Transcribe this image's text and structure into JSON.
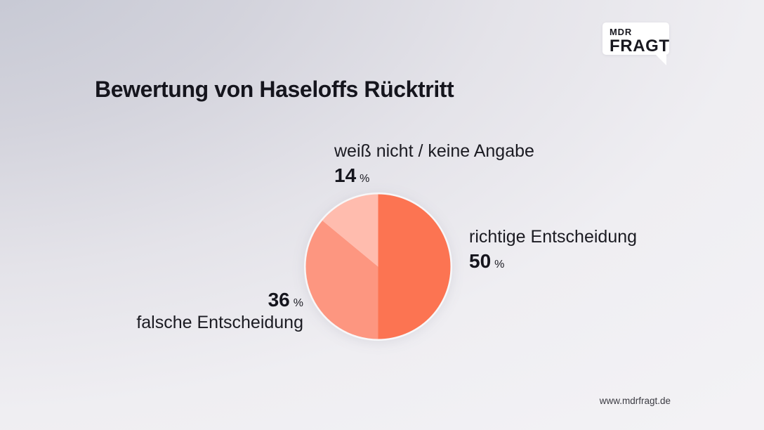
{
  "brand": {
    "logo_line1": "MDR",
    "logo_line2": "FRAGT"
  },
  "title": "Bewertung von Haseloffs Rücktritt",
  "footer": {
    "url": "www.mdrfragt.de"
  },
  "chart_data": {
    "type": "pie",
    "title": "Bewertung von Haseloffs Rücktritt",
    "unit": "%",
    "start_angle_deg": 0,
    "direction": "clockwise",
    "legend_position": "labels-around-pie",
    "slices": [
      {
        "label": "richtige Entscheidung",
        "value": 50,
        "color": "#fc7452"
      },
      {
        "label": "falsche Entscheidung",
        "value": 36,
        "color": "#fd9680"
      },
      {
        "label": "weiß nicht / keine Angabe",
        "value": 14,
        "color": "#ffbcae"
      }
    ]
  }
}
